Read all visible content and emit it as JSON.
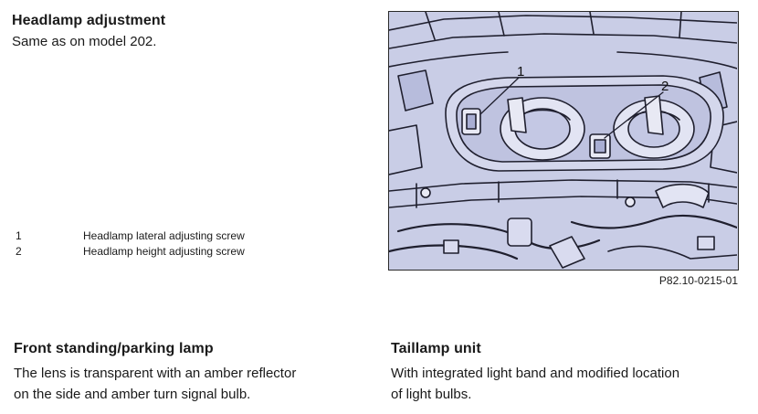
{
  "headlamp": {
    "heading": "Headlamp adjustment",
    "body": "Same as on model 202."
  },
  "legend": [
    {
      "num": "1",
      "text": "Headlamp lateral adjusting screw"
    },
    {
      "num": "2",
      "text": "Headlamp height adjusting screw"
    }
  ],
  "figure": {
    "callout_1": "1",
    "callout_2": "2",
    "code": "P82.10-0215-01",
    "bg_color": "#c9cde6"
  },
  "front_lamp": {
    "heading": "Front standing/parking lamp",
    "line1": "The lens is transparent with an amber reflector",
    "line2": "on the side and amber turn signal bulb."
  },
  "taillamp": {
    "heading": "Taillamp unit",
    "line1": "With integrated light band and modified location",
    "line2": "of light bulbs."
  }
}
